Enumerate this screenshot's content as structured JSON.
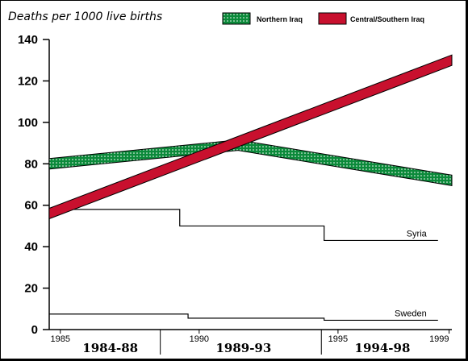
{
  "chart_data": {
    "type": "line",
    "ylabel": "Deaths per 1000 live births",
    "ylim": [
      0,
      140
    ],
    "yticks": [
      "0",
      "20",
      "40",
      "60",
      "80",
      "100",
      "120",
      "140"
    ],
    "xlim": [
      1984.6,
      1999.1
    ],
    "xticks": [
      {
        "value": 1985,
        "label": "1985"
      },
      {
        "value": 1990,
        "label": "1990"
      },
      {
        "value": 1995,
        "label": "1995"
      },
      {
        "value": 1999,
        "label": "1999"
      }
    ],
    "periods": [
      {
        "label": "1984-88",
        "x": 1986.8
      },
      {
        "label": "1989-93",
        "x": 1991.6
      },
      {
        "label": "1994-98",
        "x": 1996.6
      }
    ],
    "series": [
      {
        "name": "Northern Iraq",
        "style": "band",
        "color": "#0b8a3a",
        "points": [
          {
            "x": 1984.6,
            "y": 80
          },
          {
            "x": 1991.4,
            "y": 89
          },
          {
            "x": 1999.1,
            "y": 72
          }
        ]
      },
      {
        "name": "Central/Southern Iraq",
        "style": "band",
        "color": "#c8102e",
        "points": [
          {
            "x": 1984.6,
            "y": 56
          },
          {
            "x": 1999.1,
            "y": 130
          }
        ]
      },
      {
        "name": "Syria",
        "style": "step",
        "color": "#000000",
        "steps": [
          {
            "x0": 1984.6,
            "x1": 1989.3,
            "y": 58
          },
          {
            "x0": 1989.3,
            "x1": 1994.5,
            "y": 50
          },
          {
            "x0": 1994.5,
            "x1": 1998.6,
            "y": 43
          }
        ]
      },
      {
        "name": "Sweden",
        "style": "step",
        "color": "#000000",
        "steps": [
          {
            "x0": 1984.6,
            "x1": 1989.6,
            "y": 7.5
          },
          {
            "x0": 1989.6,
            "x1": 1994.5,
            "y": 5.5
          },
          {
            "x0": 1994.5,
            "x1": 1998.6,
            "y": 4.5
          }
        ]
      }
    ],
    "legend": {
      "position": "top",
      "entries": [
        "Northern Iraq",
        "Central/Southern Iraq"
      ]
    },
    "grid": false
  }
}
